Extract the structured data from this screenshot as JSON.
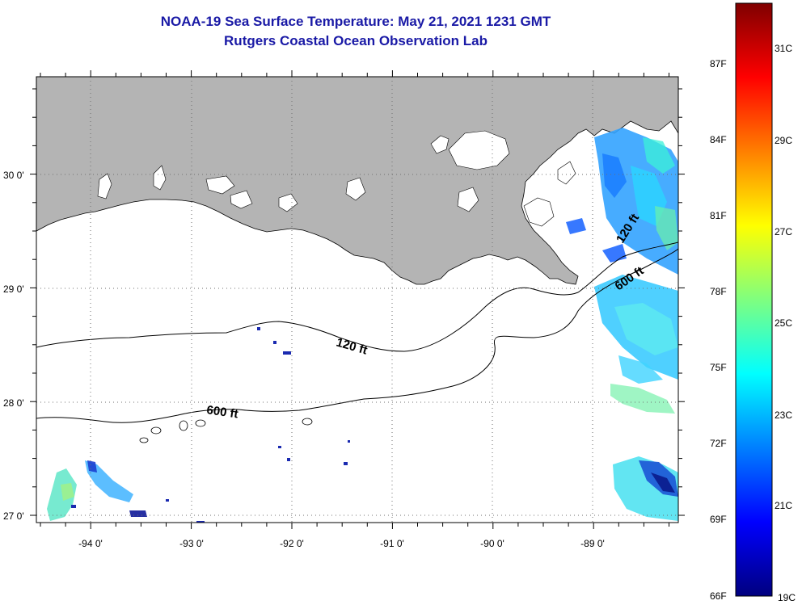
{
  "header": {
    "title": "NOAA-19 Sea Surface Temperature:  May 21, 2021 1231 GMT",
    "subtitle": "Rutgers Coastal Ocean Observation Lab"
  },
  "map": {
    "longitude_ticks": [
      "-94 0'",
      "-93 0'",
      "-92 0'",
      "-91 0'",
      "-90 0'",
      "-89 0'"
    ],
    "latitude_ticks": [
      "30 0'",
      "29 0'",
      "28 0'",
      "27 0'"
    ],
    "contour_labels": {
      "c120_west": "120 ft",
      "c600_west": "600 ft",
      "c120_east": "120 ft",
      "c600_east": "600 ft"
    },
    "colors": {
      "land": "#b4b4b4",
      "water": "#ffffff",
      "grid": "#777777"
    }
  },
  "colorbar": {
    "fahrenheit": [
      "87F",
      "84F",
      "81F",
      "78F",
      "75F",
      "72F",
      "69F",
      "66F"
    ],
    "celsius": [
      "31C",
      "29C",
      "27C",
      "25C",
      "23C",
      "21C",
      "19C"
    ],
    "colors": [
      "#00007f",
      "#0000ff",
      "#007fff",
      "#00ffff",
      "#7fff7f",
      "#ffff00",
      "#ff7f00",
      "#ff0000",
      "#7f0000"
    ]
  }
}
